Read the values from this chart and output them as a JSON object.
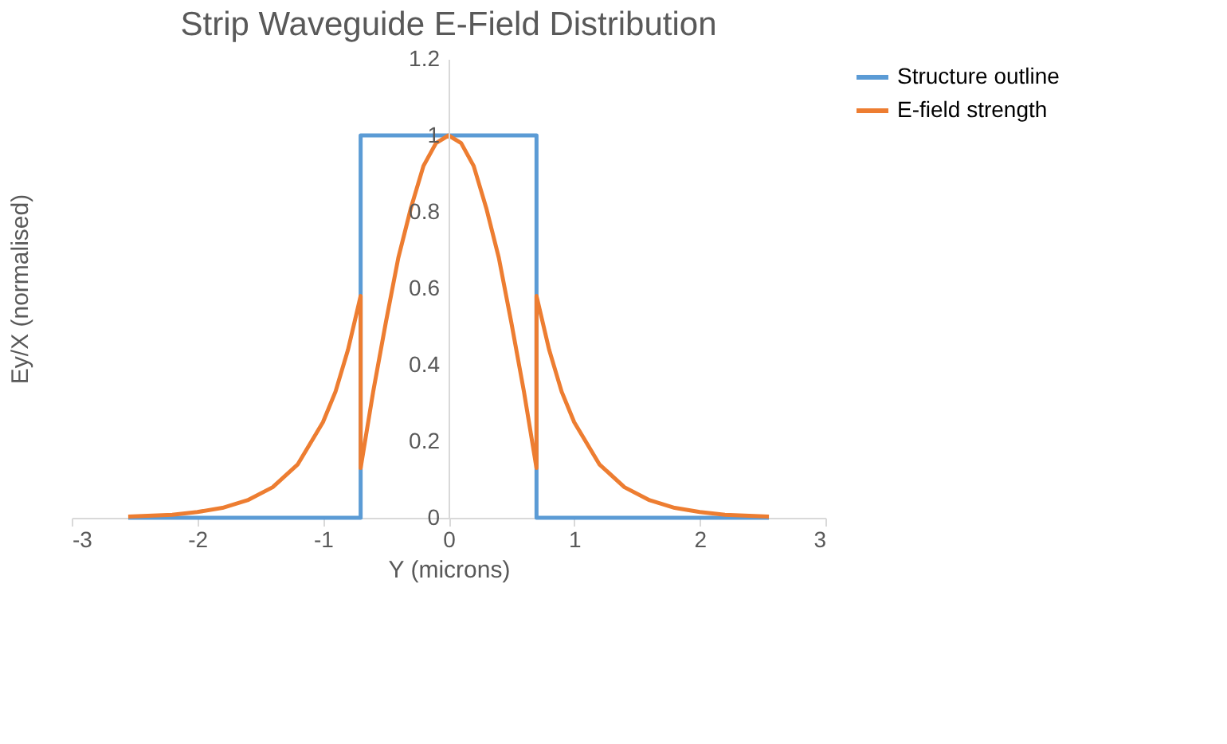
{
  "chart_data": {
    "type": "line",
    "title": "Strip Waveguide E-Field Distribution",
    "xlabel": "Y (microns)",
    "ylabel": "Ey/X (normalised)",
    "xlim": [
      -3,
      3
    ],
    "xticks": [
      -3,
      -2,
      -1,
      0,
      1,
      2,
      3
    ],
    "ylim": [
      0,
      1.2
    ],
    "yticks": [
      {
        "value": 0,
        "label": "0"
      },
      0.2,
      0.4,
      0.6,
      0.8,
      {
        "value": 1,
        "label": "1"
      },
      1.2
    ],
    "grid": false,
    "legend": "right",
    "marker": "none",
    "line_style": "solid",
    "series": [
      {
        "name": "Structure outline",
        "color": "#5b9bd5",
        "x": [
          -2.55,
          -0.7,
          -0.7,
          0.7,
          0.7,
          2.55
        ],
        "values": [
          0,
          0,
          1,
          1,
          0,
          0
        ]
      },
      {
        "name": "E-field strength",
        "color": "#ed7d31",
        "x": [
          -2.55,
          -2.2,
          -2.0,
          -1.8,
          -1.6,
          -1.4,
          -1.2,
          -1.0,
          -0.9,
          -0.8,
          -0.7,
          -0.7,
          -0.6,
          -0.5,
          -0.4,
          -0.3,
          -0.2,
          -0.1,
          0,
          0.1,
          0.2,
          0.3,
          0.4,
          0.5,
          0.6,
          0.7,
          0.7,
          0.8,
          0.9,
          1.0,
          1.2,
          1.4,
          1.6,
          1.8,
          2.0,
          2.2,
          2.55
        ],
        "values": [
          0.003,
          0.008,
          0.015,
          0.026,
          0.046,
          0.08,
          0.14,
          0.25,
          0.33,
          0.44,
          0.58,
          0.13,
          0.33,
          0.51,
          0.68,
          0.81,
          0.92,
          0.98,
          1,
          0.98,
          0.92,
          0.81,
          0.68,
          0.51,
          0.33,
          0.13,
          0.58,
          0.44,
          0.33,
          0.25,
          0.14,
          0.08,
          0.046,
          0.026,
          0.015,
          0.008,
          0.003
        ]
      }
    ]
  }
}
